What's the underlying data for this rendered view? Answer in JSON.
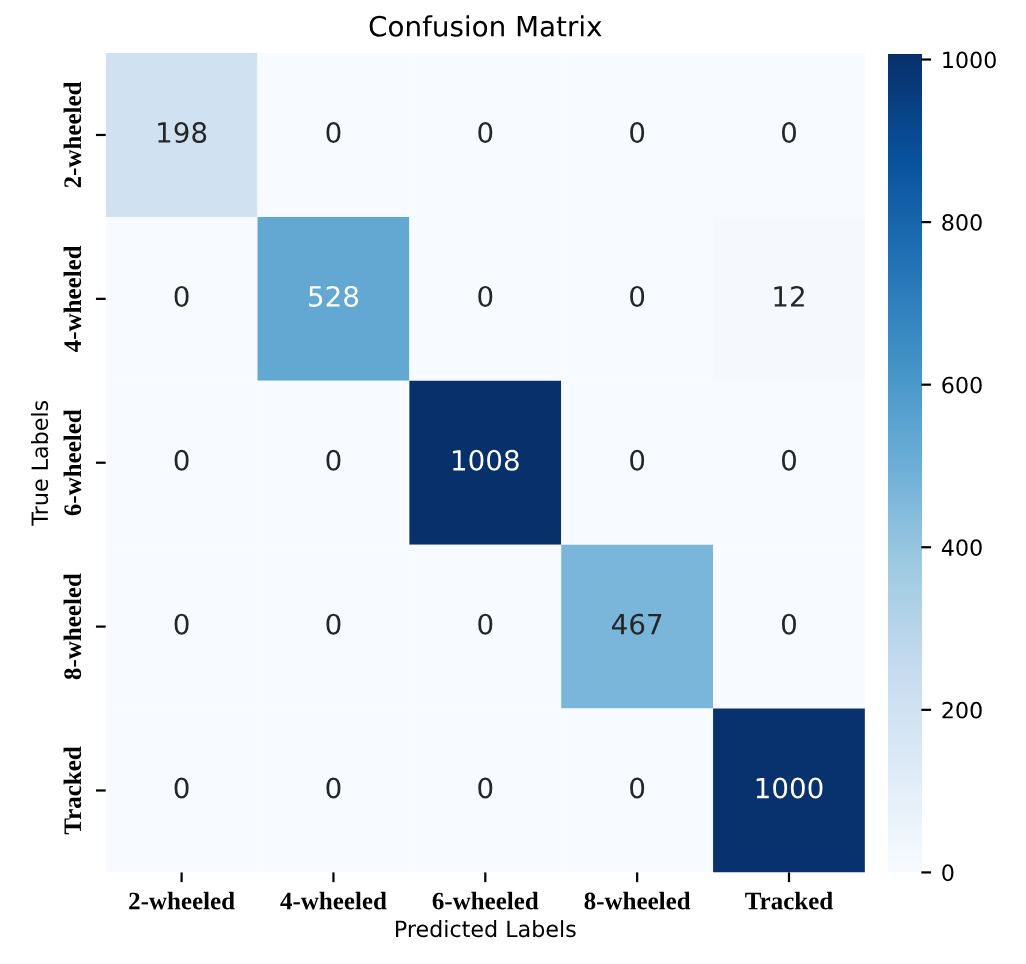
{
  "chart_data": {
    "type": "heatmap",
    "title": "Confusion Matrix",
    "xlabel": "Predicted Labels",
    "ylabel": "True Labels",
    "categories": [
      "2-wheeled",
      "4-wheeled",
      "6-wheeled",
      "8-wheeled",
      "Tracked"
    ],
    "y_categories": [
      "2-wheeled",
      "4-wheeled",
      "6-wheeled",
      "8-wheeled",
      "Tracked"
    ],
    "cells": [
      [
        198,
        0,
        0,
        0,
        0
      ],
      [
        0,
        528,
        0,
        0,
        12
      ],
      [
        0,
        0,
        1008,
        0,
        0
      ],
      [
        0,
        0,
        0,
        467,
        0
      ],
      [
        0,
        0,
        0,
        0,
        1000
      ]
    ],
    "clim": [
      0,
      1008
    ],
    "cticks": [
      0,
      200,
      400,
      600,
      800,
      1000
    ],
    "data_labels": true
  }
}
